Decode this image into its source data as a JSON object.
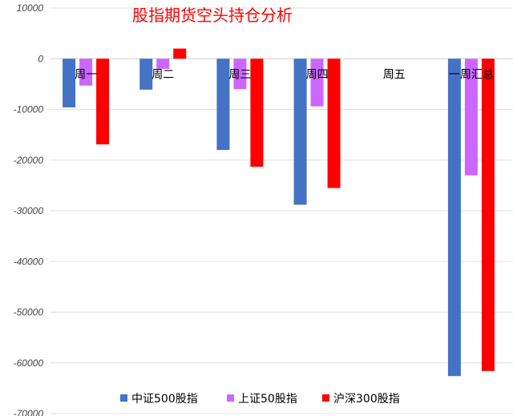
{
  "chart_data": {
    "type": "bar",
    "title": "股指期货空头持仓分析",
    "categories": [
      "周一",
      "周二",
      "周三",
      "周四",
      "周五",
      "一周汇总"
    ],
    "series": [
      {
        "name": "中证500股指",
        "color": "#4472c4",
        "values": [
          -9600,
          -6100,
          -18000,
          -28800,
          0,
          -62600
        ]
      },
      {
        "name": "上证50股指",
        "color": "#cc66ff",
        "values": [
          -5300,
          -2000,
          -6000,
          -9400,
          0,
          -23000
        ]
      },
      {
        "name": "沪深300股指",
        "color": "#ff0000",
        "values": [
          -16900,
          2000,
          -21300,
          -25500,
          0,
          -61600
        ]
      }
    ],
    "ylim": [
      -70000,
      10000
    ],
    "yticks": [
      10000,
      0,
      -10000,
      -20000,
      -30000,
      -40000,
      -50000,
      -60000,
      -70000
    ],
    "xlabel": "",
    "ylabel": "",
    "grid": true,
    "legend_position": "bottom"
  }
}
